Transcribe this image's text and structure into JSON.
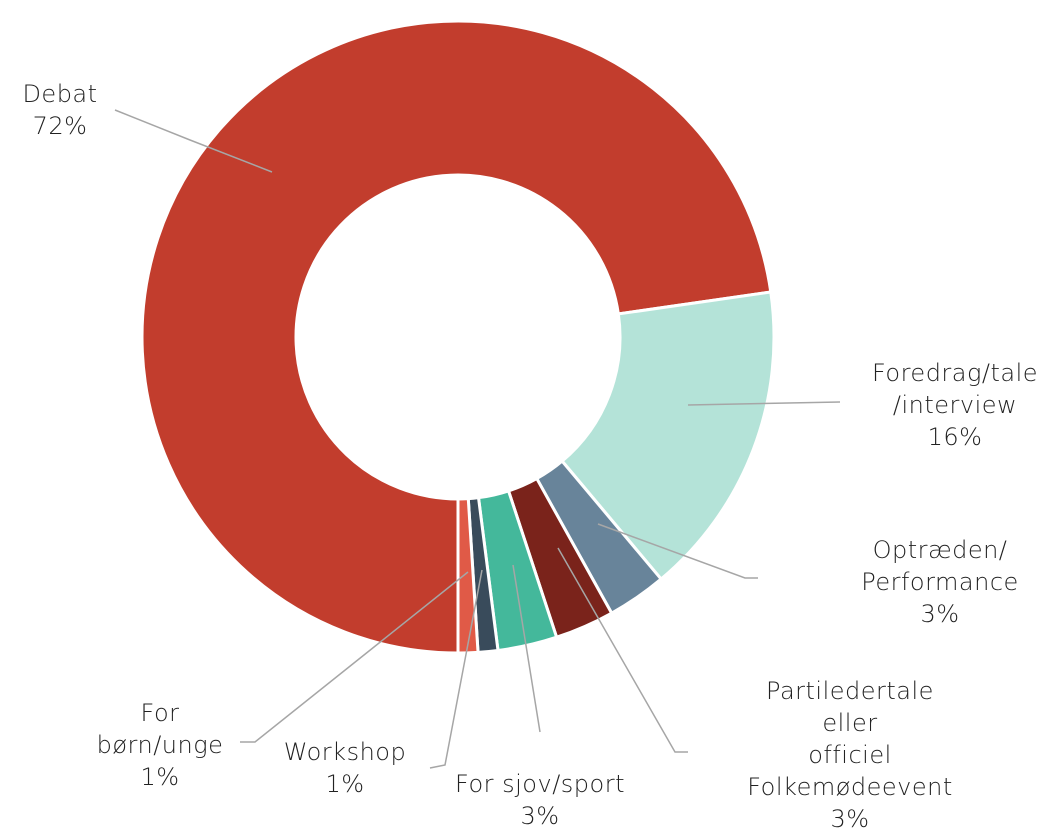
{
  "chart_data": {
    "type": "donut",
    "categories": [
      "Debat",
      "Foredrag/tale\n/interview",
      "Optræden/\nPerformance",
      "Partiledertale eller\nofficiel\nFolkemødeevent",
      "For sjov/sport",
      "Workshop",
      "For\nbørn/unge"
    ],
    "values": [
      72,
      16,
      3,
      3,
      3,
      1,
      1
    ],
    "value_labels": [
      "72%",
      "16%",
      "3%",
      "3%",
      "3%",
      "1%",
      "1%"
    ],
    "colors": [
      "#c23d2d",
      "#b4e3d8",
      "#68849a",
      "#7a231b",
      "#44b89b",
      "#394b5b",
      "#e05a47"
    ]
  }
}
